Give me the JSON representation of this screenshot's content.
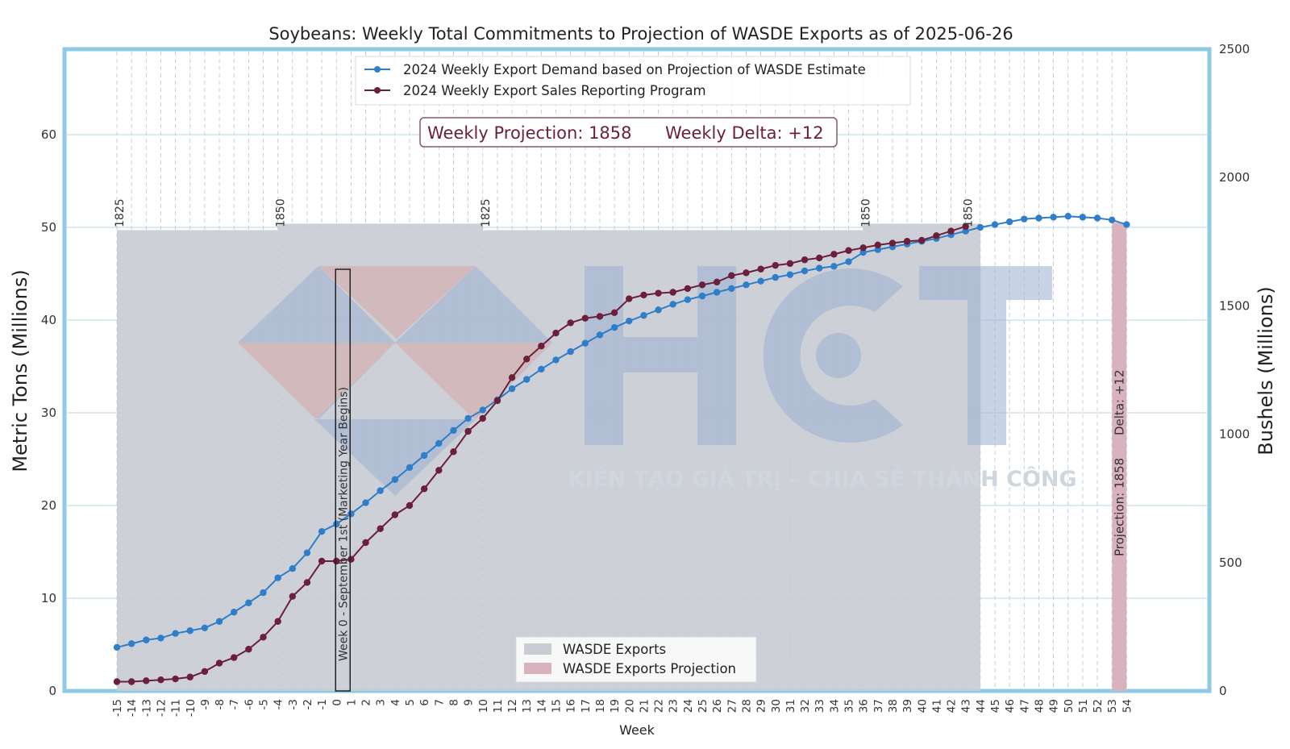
{
  "chart_data": {
    "type": "line",
    "title": "Soybeans: Weekly Total Commitments to Projection of WASDE Exports as of 2025-06-26",
    "xlabel": "Week",
    "ylabel_left": "Metric Tons (Millions)",
    "ylabel_right": "Bushels (Millions)",
    "ylim_left": [
      0,
      68
    ],
    "ylim_right": [
      0,
      2500
    ],
    "yticks_left": [
      0,
      10,
      20,
      30,
      40,
      50,
      60
    ],
    "yticks_right": [
      0,
      500,
      1000,
      1500,
      2000,
      2500
    ],
    "x": [
      -15,
      -14,
      -13,
      -12,
      -11,
      -10,
      -9,
      -8,
      -7,
      -6,
      -5,
      -4,
      -3,
      -2,
      -1,
      0,
      1,
      2,
      3,
      4,
      5,
      6,
      7,
      8,
      9,
      10,
      11,
      12,
      13,
      14,
      15,
      16,
      17,
      18,
      19,
      20,
      21,
      22,
      23,
      24,
      25,
      26,
      27,
      28,
      29,
      30,
      31,
      32,
      33,
      34,
      35,
      36,
      37,
      38,
      39,
      40,
      41,
      42,
      43,
      44,
      45,
      46,
      47,
      48,
      49,
      50,
      51,
      52,
      53,
      54
    ],
    "xlim": [
      -15.5,
      54.5
    ],
    "grid": true,
    "series": [
      {
        "name": "2024 Weekly Export Demand based on Projection of WASDE Estimate",
        "color": "#2f7ec9",
        "x": [
          -15,
          -14,
          -13,
          -12,
          -11,
          -10,
          -9,
          -8,
          -7,
          -6,
          -5,
          -4,
          -3,
          -2,
          -1,
          0,
          1,
          2,
          3,
          4,
          5,
          6,
          7,
          8,
          9,
          10,
          11,
          12,
          13,
          14,
          15,
          16,
          17,
          18,
          19,
          20,
          21,
          22,
          23,
          24,
          25,
          26,
          27,
          28,
          29,
          30,
          31,
          32,
          33,
          34,
          35,
          36,
          37,
          38,
          39,
          40,
          41,
          42,
          43,
          44,
          45,
          46,
          47,
          48,
          49,
          50,
          51,
          52,
          53,
          54
        ],
        "values": [
          4.7,
          5.1,
          5.5,
          5.7,
          6.2,
          6.5,
          6.8,
          7.5,
          8.5,
          9.5,
          10.6,
          12.2,
          13.2,
          14.9,
          17.2,
          18.0,
          19.1,
          20.3,
          21.6,
          22.8,
          24.1,
          25.4,
          26.7,
          28.1,
          29.4,
          30.3,
          31.4,
          32.6,
          33.6,
          34.7,
          35.7,
          36.6,
          37.5,
          38.4,
          39.2,
          39.9,
          40.5,
          41.1,
          41.7,
          42.2,
          42.6,
          43.0,
          43.4,
          43.8,
          44.2,
          44.6,
          44.9,
          45.3,
          45.6,
          45.8,
          46.3,
          47.3,
          47.6,
          47.9,
          48.2,
          48.5,
          48.8,
          49.2,
          49.6,
          50.0,
          50.3,
          50.6,
          50.9,
          51.0,
          51.1,
          51.2,
          51.1,
          51.0,
          50.8,
          50.3
        ]
      },
      {
        "name": "2024 Weekly Export Sales Reporting Program",
        "color": "#6b1f3a",
        "x": [
          -15,
          -14,
          -13,
          -12,
          -11,
          -10,
          -9,
          -8,
          -7,
          -6,
          -5,
          -4,
          -3,
          -2,
          -1,
          0,
          1,
          2,
          3,
          4,
          5,
          6,
          7,
          8,
          9,
          10,
          11,
          12,
          13,
          14,
          15,
          16,
          17,
          18,
          19,
          20,
          21,
          22,
          23,
          24,
          25,
          26,
          27,
          28,
          29,
          30,
          31,
          32,
          33,
          34,
          35,
          36,
          37,
          38,
          39,
          40,
          41,
          42,
          43
        ],
        "values": [
          1.0,
          1.0,
          1.1,
          1.2,
          1.3,
          1.5,
          2.1,
          3.0,
          3.6,
          4.5,
          5.8,
          7.5,
          10.2,
          11.7,
          14.0,
          14.0,
          14.2,
          16.0,
          17.5,
          19.0,
          20.0,
          21.8,
          23.8,
          25.8,
          28.0,
          29.4,
          31.3,
          33.8,
          35.8,
          37.2,
          38.6,
          39.7,
          40.2,
          40.4,
          40.8,
          42.3,
          42.7,
          42.9,
          43.0,
          43.4,
          43.8,
          44.1,
          44.8,
          45.1,
          45.5,
          45.9,
          46.1,
          46.5,
          46.7,
          47.1,
          47.5,
          47.8,
          48.1,
          48.3,
          48.5,
          48.6,
          49.1,
          49.6,
          50.1
        ]
      }
    ],
    "bars": [
      {
        "name": "WASDE Exports",
        "color": "#c9ccd3",
        "x_start": -15,
        "x_end": 44,
        "segments": [
          {
            "x_start": -15,
            "x_end": -4,
            "value": 49.7
          },
          {
            "x_start": -4,
            "x_end": 10,
            "value": 50.4
          },
          {
            "x_start": 10,
            "x_end": 36,
            "value": 49.7
          },
          {
            "x_start": 36,
            "x_end": 44,
            "value": 50.4
          }
        ]
      },
      {
        "name": "WASDE Exports Projection",
        "color": "#d8b3bd",
        "x": 53.5,
        "value": 50.5
      }
    ],
    "segment_labels": [
      {
        "x": -15,
        "text": "1825"
      },
      {
        "x": -4,
        "text": "1850"
      },
      {
        "x": 10,
        "text": "1825"
      },
      {
        "x": 36,
        "text": "1850"
      },
      {
        "x": 43,
        "text": "1850"
      }
    ],
    "annotations": {
      "info_box": {
        "projection_label": "Weekly Projection: 1858",
        "delta_label": "Weekly Delta: +12"
      },
      "week0_label": "Week 0 - September 1st (Marketing Year Begins)",
      "projection_bar_label": "Projection: 1858",
      "delta_bar_label": "Delta: +12"
    },
    "legend_top": "top-center",
    "legend_bottom": "bottom-center",
    "watermark": {
      "logo": "HCT",
      "slogan": "KIẾN TẠO GIÁ TRỊ – CHIA SẺ THÀNH CÔNG"
    }
  },
  "colors": {
    "frame": "#8ecae6",
    "demand": "#2f7ec9",
    "sales": "#6b1f3a",
    "wasde": "#c9ccd3",
    "projection": "#d8b3bd"
  }
}
